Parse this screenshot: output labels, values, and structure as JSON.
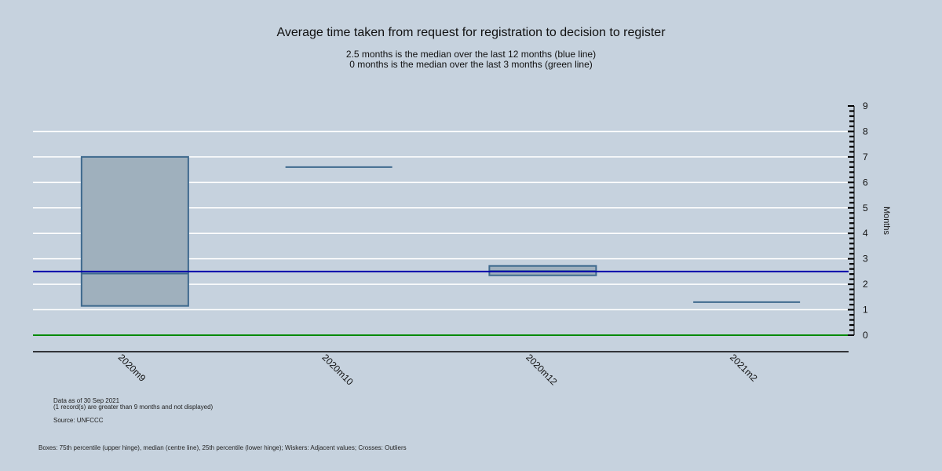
{
  "chart_data": {
    "type": "box",
    "title": "Average time taken from request for registration to decision to register",
    "subtitles": [
      "2.5 months is the median over the last 12 months (blue line)",
      "0 months is the median over the last 3 months (green line)"
    ],
    "ylabel": "Months",
    "ylim": [
      -0.65,
      9
    ],
    "y_ticks": [
      0,
      1,
      2,
      3,
      4,
      5,
      6,
      7,
      8,
      9
    ],
    "grid": true,
    "y_axis_side": "right",
    "categories": [
      "2020m9",
      "2020m10",
      "2020m12",
      "2021m2"
    ],
    "boxes": [
      {
        "category": "2020m9",
        "q1": 1.15,
        "median": 2.42,
        "q3": 7.0
      },
      {
        "category": "2020m10",
        "q1": 6.6,
        "median": 6.6,
        "q3": 6.6
      },
      {
        "category": "2020m12",
        "q1": 2.35,
        "median": 2.52,
        "q3": 2.72
      },
      {
        "category": "2021m2",
        "q1": 1.3,
        "median": 1.3,
        "q3": 1.3
      }
    ],
    "reference_lines": [
      {
        "value": 2.5,
        "color": "#0000aa"
      },
      {
        "value": 0,
        "color": "#008a00"
      }
    ],
    "box_fill": "#9fb0bd",
    "box_stroke": "#3f6a8e",
    "gridline_color": "#ffffff"
  },
  "notes": {
    "data_as_of": "Data as of 30 Sep 2021",
    "records_excluded": "(1 record(s) are greater than 9 months and not displayed)",
    "source": "Source: UNFCCC",
    "legend_explanation": "Boxes: 75th percentile (upper hinge), median (centre line), 25th percentile (lower hinge); Wiskers: Adjacent values; Crosses: Outliers"
  }
}
